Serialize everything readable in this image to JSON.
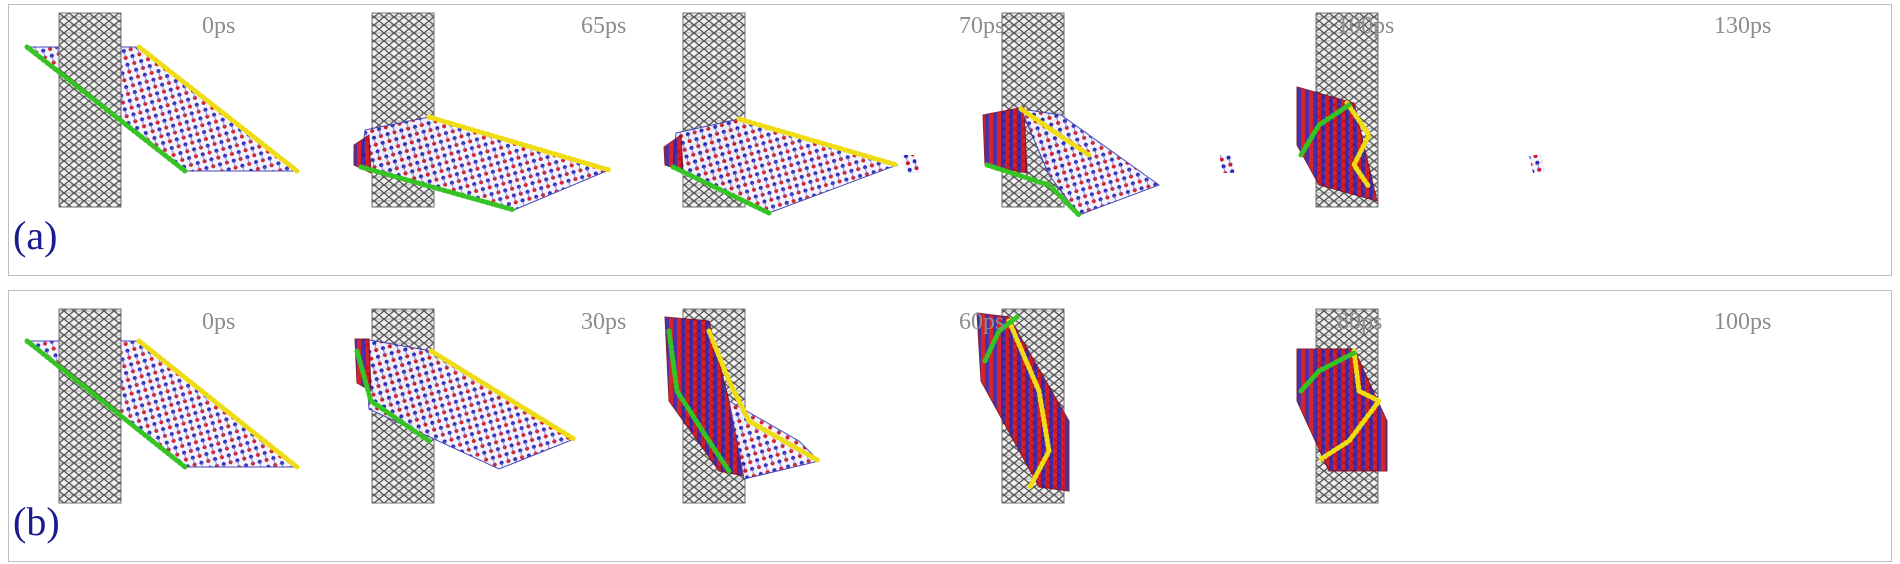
{
  "panels": [
    {
      "label": "(a)",
      "frames": [
        {
          "time": "0ps",
          "stage": "initial"
        },
        {
          "time": "65ps",
          "stage": "flattened"
        },
        {
          "time": "70ps",
          "stage": "flattened"
        },
        {
          "time": "100ps",
          "stage": "partial-wrap"
        },
        {
          "time": "130ps",
          "stage": "wrapped"
        }
      ]
    },
    {
      "label": "(b)",
      "frames": [
        {
          "time": "0ps",
          "stage": "initial"
        },
        {
          "time": "30ps",
          "stage": "bending"
        },
        {
          "time": "60ps",
          "stage": "wrapping"
        },
        {
          "time": "80ps",
          "stage": "near-wrapped"
        },
        {
          "time": "100ps",
          "stage": "wrapped"
        }
      ]
    }
  ],
  "colors": {
    "nanotube": "#5a5a5a",
    "sheet_red": "#d10d17",
    "sheet_blue": "#1d1db5",
    "edge_yellow": "#f0dc12",
    "edge_green": "#36c424",
    "label_blue": "#1b1b8f",
    "time_gray": "#8d8d8d"
  }
}
